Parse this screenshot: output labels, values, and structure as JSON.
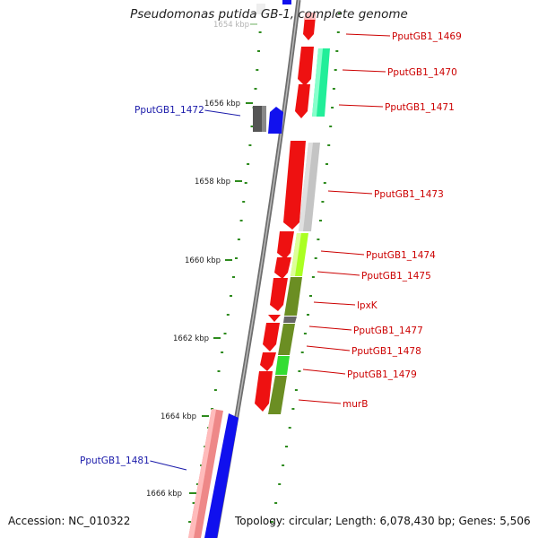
{
  "title": "Pseudomonas putida GB-1, complete genome",
  "footer": {
    "accession": "Accession: NC_010322",
    "info": "Topology: circular; Length: 6,078,430 bp; Genes: 5,506"
  },
  "ticks": [
    {
      "label": "1654 kbp"
    },
    {
      "label": "1656 kbp"
    },
    {
      "label": "1658 kbp"
    },
    {
      "label": "1660 kbp"
    },
    {
      "label": "1662 kbp"
    },
    {
      "label": "1664 kbp"
    },
    {
      "label": "1666 kbp"
    }
  ],
  "genes": [
    {
      "name": "PputGB1_1469",
      "color": "#dd1111",
      "side": "right"
    },
    {
      "name": "PputGB1_1470",
      "color": "#dd1111",
      "side": "right"
    },
    {
      "name": "PputGB1_1471",
      "color": "#dd1111",
      "side": "right"
    },
    {
      "name": "PputGB1_1472",
      "color": "#1a1aaa",
      "side": "left"
    },
    {
      "name": "PputGB1_1473",
      "color": "#dd1111",
      "side": "right"
    },
    {
      "name": "PputGB1_1474",
      "color": "#dd1111",
      "side": "right"
    },
    {
      "name": "PputGB1_1475",
      "color": "#dd1111",
      "side": "right"
    },
    {
      "name": "lpxK",
      "color": "#dd1111",
      "side": "right"
    },
    {
      "name": "PputGB1_1477",
      "color": "#dd1111",
      "side": "right"
    },
    {
      "name": "PputGB1_1478",
      "color": "#dd1111",
      "side": "right"
    },
    {
      "name": "PputGB1_1479",
      "color": "#dd1111",
      "side": "right"
    },
    {
      "name": "murB",
      "color": "#dd1111",
      "side": "right"
    },
    {
      "name": "PputGB1_1481",
      "color": "#1a1aaa",
      "side": "left"
    }
  ],
  "colors": {
    "backbone": "#8a8a8a",
    "cds_forward": "#ee1111",
    "cds_reverse": "#1010ee",
    "tick": "#2e8b1e",
    "label_forward": "#cc0000",
    "label_reverse": "#1a1aaa"
  }
}
